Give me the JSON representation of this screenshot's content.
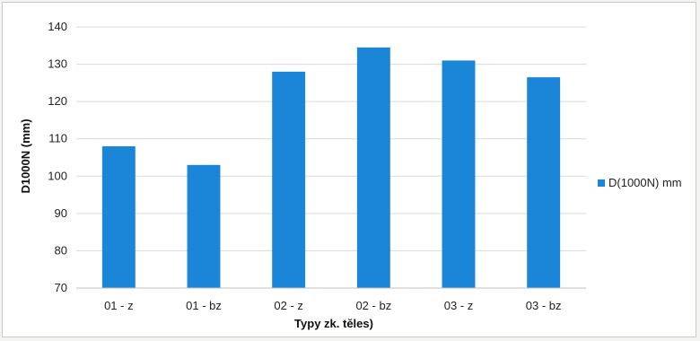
{
  "chart_data": {
    "type": "bar",
    "categories": [
      "01 - z",
      "01 - bz",
      "02 - z",
      "02 - bz",
      "03 - z",
      "03 - bz"
    ],
    "series": [
      {
        "name": "D(1000N) mm",
        "values": [
          108,
          103,
          128,
          134.5,
          131,
          126.5
        ],
        "color": "#1b86d8"
      }
    ],
    "xlabel": "Typy zk. těles)",
    "ylabel": "D1000N (mm)",
    "ylim": [
      70,
      140
    ],
    "yticks": [
      70,
      80,
      90,
      100,
      110,
      120,
      130,
      140
    ],
    "grid": true,
    "legend_position": "right"
  }
}
